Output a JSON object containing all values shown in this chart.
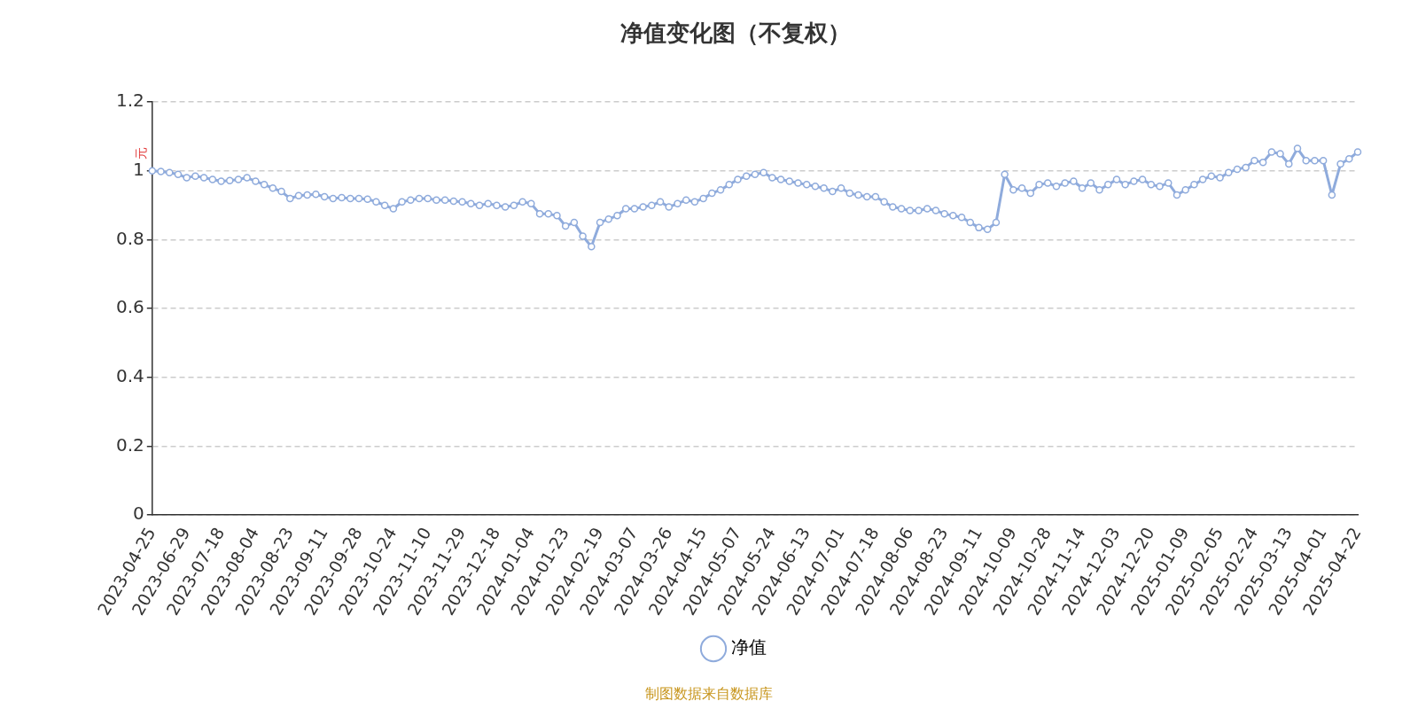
{
  "chart_data": {
    "type": "line",
    "title": "净值变化图（不复权）",
    "ylabel": "元",
    "annotations": [
      "制图数据来自数据库"
    ],
    "categories": [
      "2023-04-25",
      null,
      null,
      null,
      "2023-06-29",
      null,
      null,
      null,
      "2023-07-18",
      null,
      null,
      null,
      "2023-08-04",
      null,
      null,
      null,
      "2023-08-23",
      null,
      null,
      null,
      "2023-09-11",
      null,
      null,
      null,
      "2023-09-28",
      null,
      null,
      null,
      "2023-10-24",
      null,
      null,
      null,
      "2023-11-10",
      null,
      null,
      null,
      "2023-11-29",
      null,
      null,
      null,
      "2023-12-18",
      null,
      null,
      null,
      "2024-01-04",
      null,
      null,
      null,
      "2024-01-23",
      null,
      null,
      null,
      "2024-02-19",
      null,
      null,
      null,
      "2024-03-07",
      null,
      null,
      null,
      "2024-03-26",
      null,
      null,
      null,
      "2024-04-15",
      null,
      null,
      null,
      "2024-05-07",
      null,
      null,
      null,
      "2024-05-24",
      null,
      null,
      null,
      "2024-06-13",
      null,
      null,
      null,
      "2024-07-01",
      null,
      null,
      null,
      "2024-07-18",
      null,
      null,
      null,
      "2024-08-06",
      null,
      null,
      null,
      "2024-08-23",
      null,
      null,
      null,
      "2024-09-11",
      null,
      null,
      null,
      "2024-10-09",
      null,
      null,
      null,
      "2024-10-28",
      null,
      null,
      null,
      "2024-11-14",
      null,
      null,
      null,
      "2024-12-03",
      null,
      null,
      null,
      "2024-12-20",
      null,
      null,
      null,
      "2025-01-09",
      null,
      null,
      null,
      "2025-02-05",
      null,
      null,
      null,
      "2025-02-24",
      null,
      null,
      null,
      "2025-03-13",
      null,
      null,
      null,
      "2025-04-01",
      null,
      null,
      null,
      "2025-04-22"
    ],
    "series": [
      {
        "name": "净值",
        "color": "#8fabdc",
        "values": [
          1.0,
          0.998,
          0.995,
          0.99,
          0.98,
          0.985,
          0.98,
          0.975,
          0.97,
          0.972,
          0.975,
          0.98,
          0.97,
          0.96,
          0.95,
          0.94,
          0.92,
          0.928,
          0.93,
          0.932,
          0.925,
          0.92,
          0.922,
          0.92,
          0.92,
          0.918,
          0.91,
          0.9,
          0.89,
          0.91,
          0.915,
          0.92,
          0.92,
          0.915,
          0.915,
          0.912,
          0.91,
          0.905,
          0.9,
          0.905,
          0.9,
          0.895,
          0.9,
          0.91,
          0.905,
          0.875,
          0.875,
          0.87,
          0.84,
          0.85,
          0.81,
          0.78,
          0.85,
          0.86,
          0.87,
          0.89,
          0.89,
          0.895,
          0.9,
          0.91,
          0.895,
          0.905,
          0.915,
          0.91,
          0.92,
          0.935,
          0.945,
          0.96,
          0.975,
          0.985,
          0.99,
          0.995,
          0.98,
          0.975,
          0.97,
          0.965,
          0.96,
          0.955,
          0.95,
          0.94,
          0.95,
          0.935,
          0.93,
          0.925,
          0.925,
          0.91,
          0.895,
          0.89,
          0.885,
          0.885,
          0.89,
          0.885,
          0.875,
          0.87,
          0.865,
          0.85,
          0.835,
          0.83,
          0.85,
          0.99,
          0.945,
          0.95,
          0.935,
          0.96,
          0.965,
          0.955,
          0.965,
          0.97,
          0.95,
          0.965,
          0.945,
          0.96,
          0.975,
          0.96,
          0.97,
          0.975,
          0.96,
          0.955,
          0.965,
          0.93,
          0.945,
          0.96,
          0.975,
          0.985,
          0.98,
          0.995,
          1.005,
          1.01,
          1.03,
          1.025,
          1.055,
          1.05,
          1.02,
          1.065,
          1.03,
          1.03,
          1.03,
          0.93,
          1.02,
          1.035,
          1.055
        ]
      }
    ],
    "ylim": [
      0,
      1.2
    ],
    "yticks": [
      0,
      0.2,
      0.4,
      0.6,
      0.8,
      1,
      1.2
    ],
    "grid": "y",
    "legend": "bottom",
    "marker": "circle",
    "line_style": "solid"
  }
}
